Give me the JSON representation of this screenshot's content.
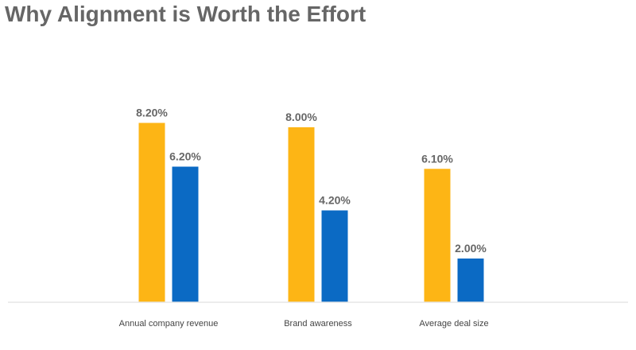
{
  "chart_data": {
    "type": "bar",
    "title": "Why Alignment is Worth the Effort",
    "xlabel": "",
    "ylabel": "",
    "ylim": [
      0,
      10
    ],
    "grid": false,
    "legend": "none",
    "categories": [
      "Annual company revenue",
      "Brand awareness",
      "Average deal size"
    ],
    "series": [
      {
        "values": [
          8.2,
          8.0,
          6.1
        ],
        "color": "#FDB515"
      },
      {
        "values": [
          6.2,
          4.2,
          2.0
        ],
        "color": "#0B6AC4"
      }
    ],
    "data_labels": [
      [
        "8.20%",
        "8.00%",
        "6.10%"
      ],
      [
        "6.20%",
        "4.20%",
        "2.00%"
      ]
    ],
    "axis_color": "#E6E6E6"
  }
}
